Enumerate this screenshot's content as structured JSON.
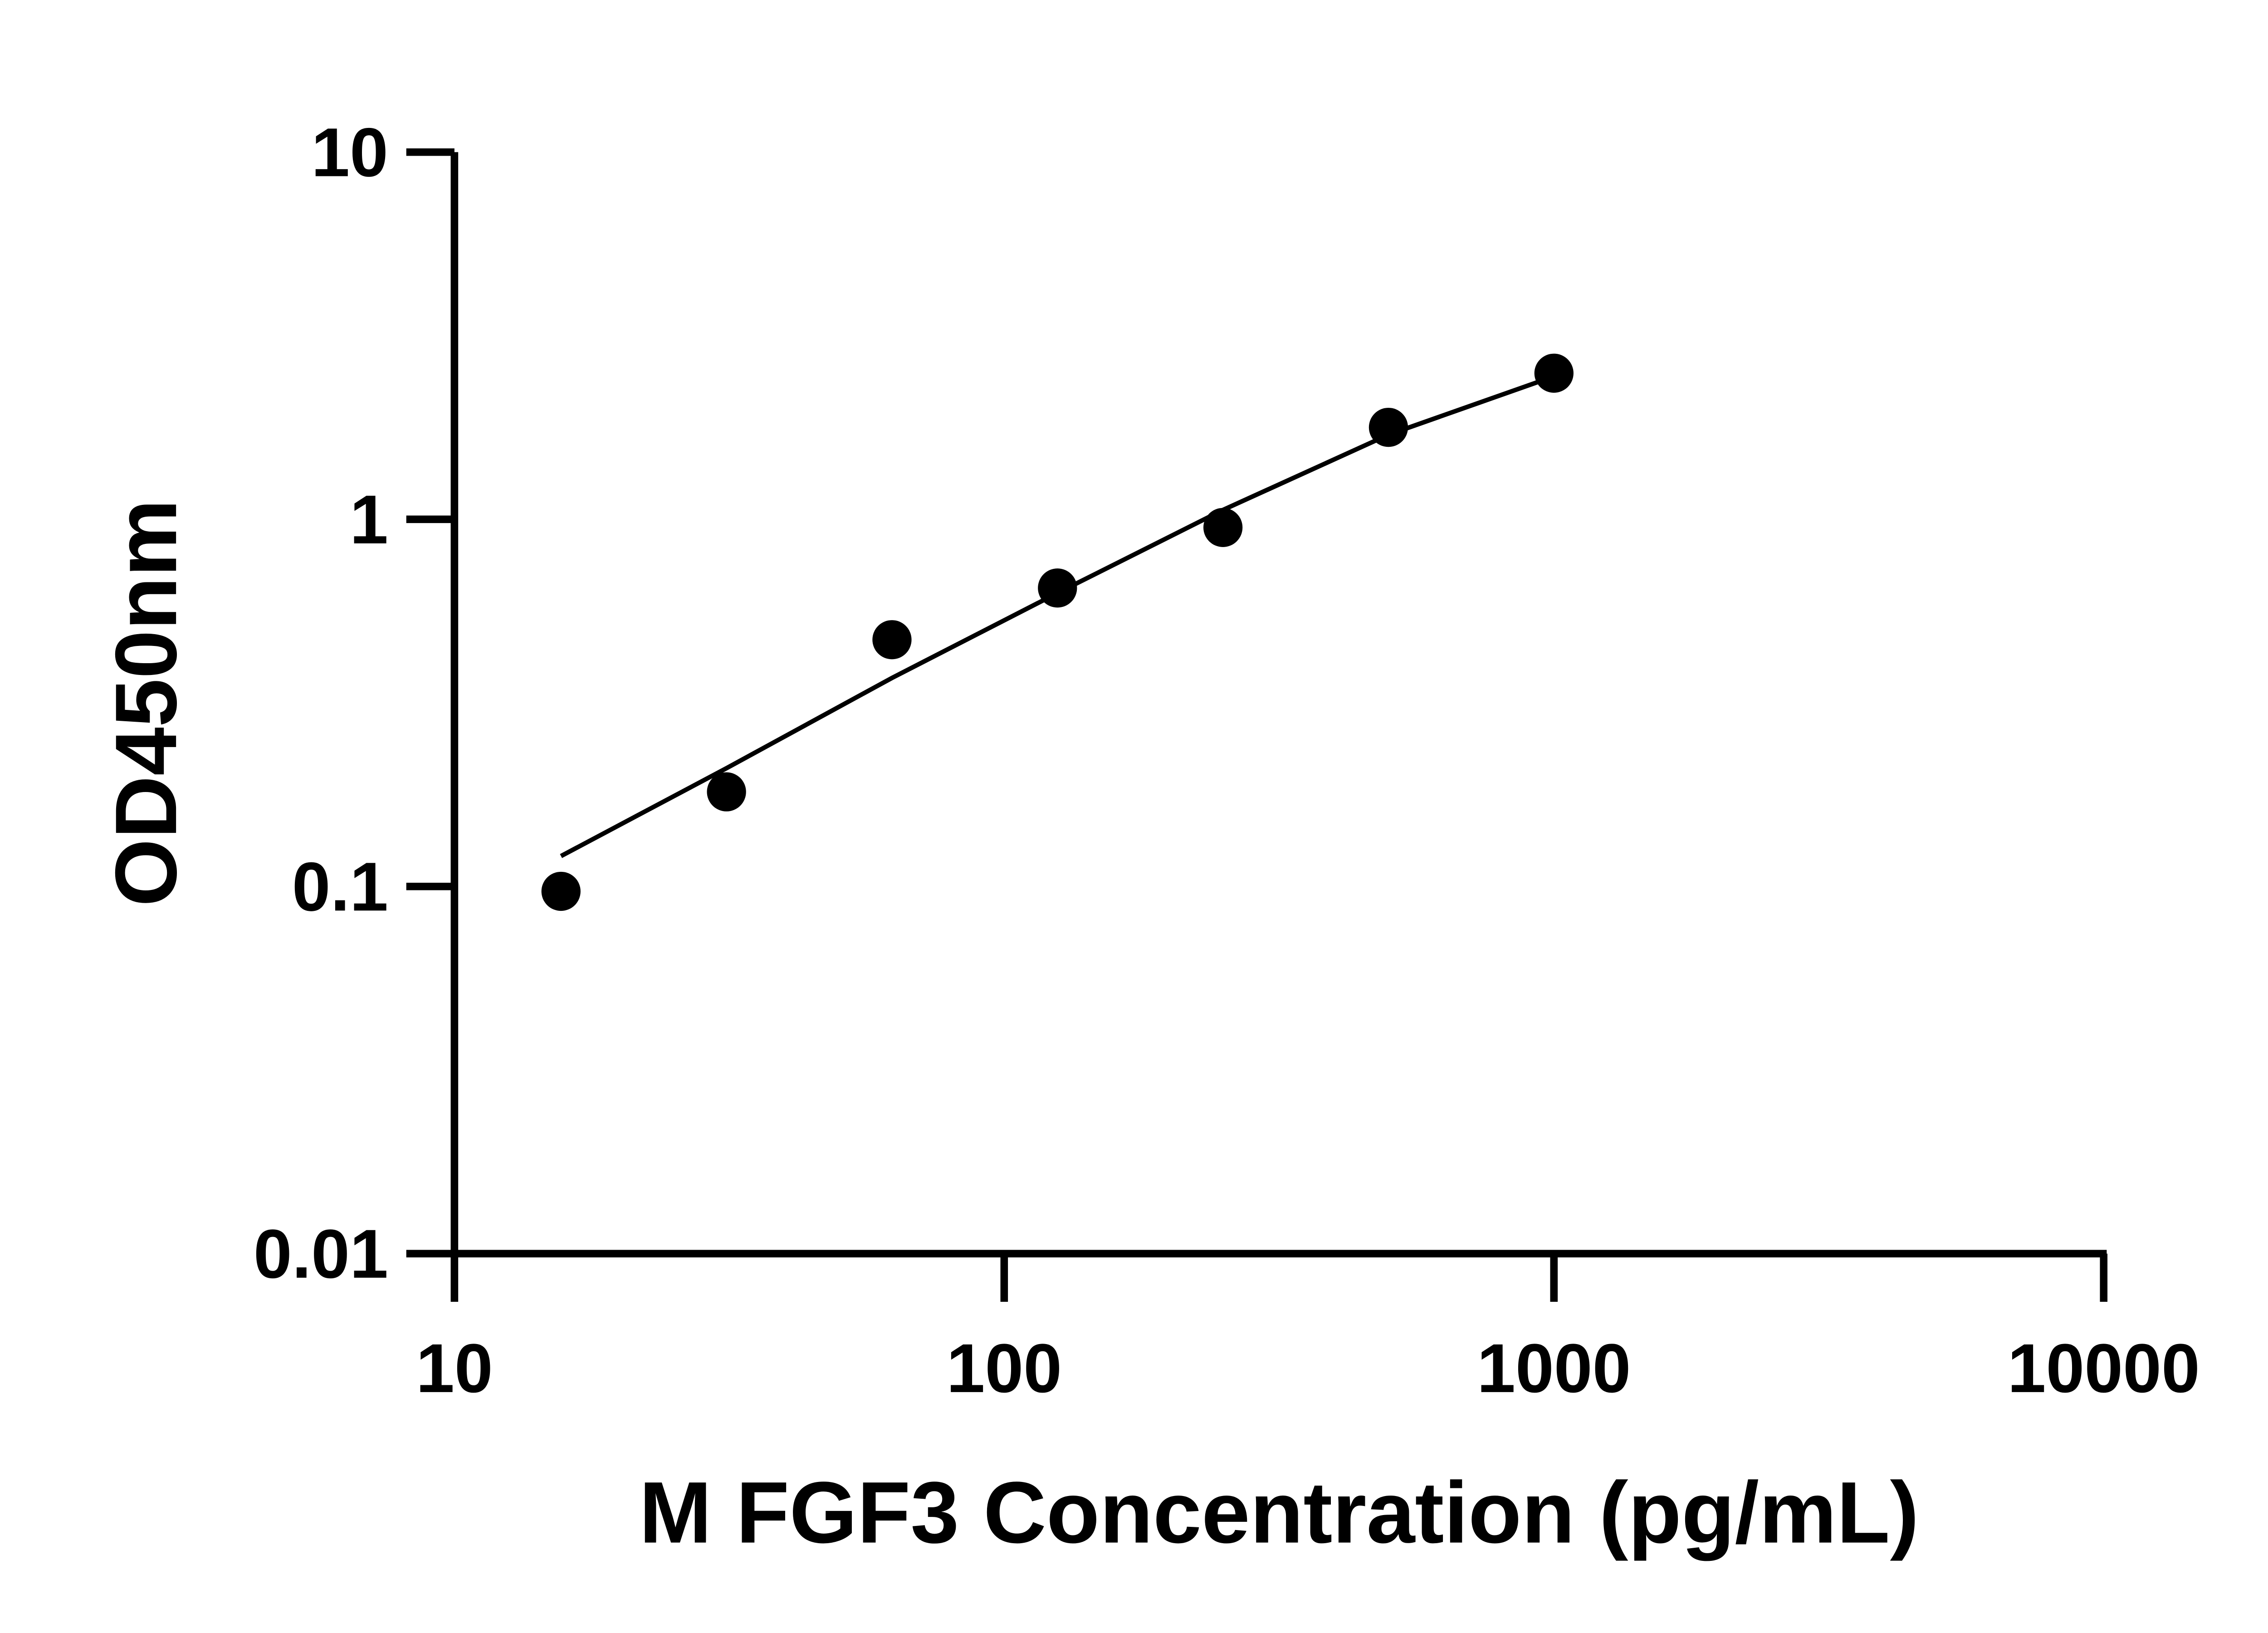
{
  "chart_data": {
    "type": "scatter",
    "title": "",
    "xlabel": "M FGF3 Concentration (pg/mL)",
    "ylabel": "OD450nm",
    "x_scale": "log",
    "y_scale": "log",
    "xlim": [
      10,
      10000
    ],
    "ylim": [
      0.01,
      10
    ],
    "x_ticks": [
      "10",
      "100",
      "1000",
      "10000"
    ],
    "y_ticks": [
      "0.01",
      "0.1",
      "1",
      "10"
    ],
    "x_tick_values": [
      10,
      100,
      1000,
      10000
    ],
    "y_tick_values": [
      0.01,
      0.1,
      1,
      10
    ],
    "grid": false,
    "colors": {
      "points": "#000000",
      "fit_line": "#000000",
      "axes": "#000000"
    },
    "series": [
      {
        "x": [
          15.625,
          31.25,
          62.5,
          125,
          250,
          500,
          1000
        ],
        "y": [
          0.097,
          0.181,
          0.47,
          0.65,
          0.95,
          1.78,
          2.5
        ]
      }
    ],
    "fit_curve": {
      "x": [
        15.625,
        31.25,
        62.5,
        125,
        250,
        500,
        1000
      ],
      "y": [
        0.121,
        0.21,
        0.37,
        0.63,
        1.06,
        1.7,
        2.45
      ]
    }
  }
}
